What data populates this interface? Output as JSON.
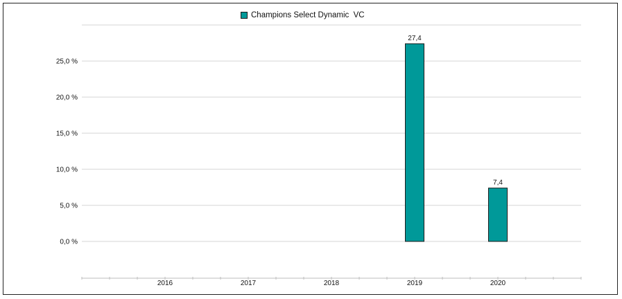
{
  "chart_data": {
    "type": "bar",
    "categories": [
      "2016",
      "2017",
      "2018",
      "2019",
      "2020"
    ],
    "series": [
      {
        "name": "Champions Select Dynamic  VC",
        "values": [
          null,
          null,
          null,
          27.4,
          7.4
        ],
        "value_labels": [
          "",
          "",
          "",
          "27,4",
          "7,4"
        ],
        "color": "#009999"
      }
    ],
    "ylim": [
      0,
      30
    ],
    "yticks": [
      0,
      5,
      10,
      15,
      20,
      25
    ],
    "ytick_labels": [
      "0,0 %",
      "5,0 %",
      "10,0 %",
      "15,0 %",
      "20,0 %",
      "25,0 %"
    ],
    "grid": true,
    "legend_position": "top-center",
    "title": "",
    "xlabel": "",
    "ylabel": ""
  }
}
